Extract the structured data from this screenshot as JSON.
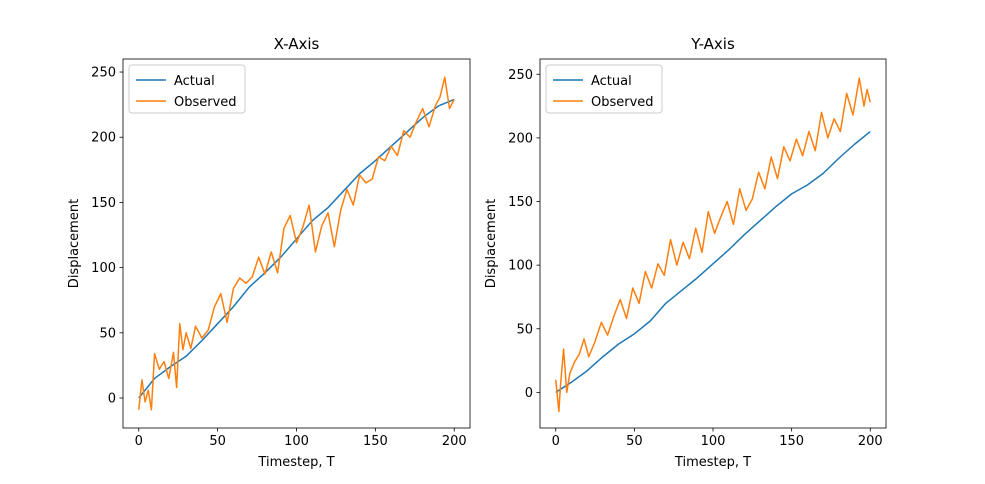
{
  "chart_data": [
    {
      "type": "line",
      "title": "X-Axis",
      "xlabel": "Timestep, T",
      "ylabel": "Displacement",
      "xlim": [
        -10,
        210
      ],
      "ylim": [
        -23,
        260
      ],
      "xticks": [
        0,
        50,
        100,
        150,
        200
      ],
      "yticks": [
        0,
        50,
        100,
        150,
        200,
        250
      ],
      "grid": false,
      "legend": "top-left",
      "series": [
        {
          "name": "Actual",
          "color": "#1f77b4",
          "x": [
            0,
            10,
            20,
            30,
            40,
            50,
            60,
            70,
            80,
            90,
            100,
            110,
            120,
            130,
            140,
            150,
            160,
            170,
            180,
            190,
            200
          ],
          "y": [
            0,
            15,
            24,
            32,
            44,
            57,
            70,
            85,
            96,
            108,
            122,
            136,
            146,
            159,
            172,
            182,
            193,
            204,
            215,
            224,
            229
          ]
        },
        {
          "name": "Observed",
          "color": "#ff7f0e",
          "x": [
            0,
            2,
            4,
            6,
            8,
            10,
            13,
            16,
            19,
            22,
            24,
            26,
            28,
            30,
            33,
            36,
            40,
            44,
            48,
            52,
            56,
            60,
            64,
            68,
            72,
            76,
            80,
            84,
            88,
            92,
            96,
            100,
            104,
            108,
            112,
            116,
            120,
            124,
            128,
            132,
            136,
            140,
            144,
            148,
            152,
            156,
            160,
            164,
            168,
            172,
            176,
            180,
            184,
            188,
            191,
            194,
            197,
            200
          ],
          "y": [
            -9,
            14,
            -3,
            6,
            -9,
            34,
            22,
            28,
            15,
            35,
            8,
            57,
            37,
            50,
            38,
            55,
            46,
            52,
            70,
            80,
            58,
            84,
            92,
            88,
            93,
            108,
            95,
            112,
            96,
            130,
            140,
            119,
            131,
            148,
            112,
            132,
            142,
            116,
            144,
            160,
            148,
            171,
            165,
            168,
            185,
            182,
            193,
            186,
            205,
            200,
            212,
            222,
            208,
            224,
            231,
            246,
            222,
            229
          ]
        }
      ]
    },
    {
      "type": "line",
      "title": "Y-Axis",
      "xlabel": "Timestep, T",
      "ylabel": "Displacement",
      "xlim": [
        -10,
        210
      ],
      "ylim": [
        -28,
        262
      ],
      "xticks": [
        0,
        50,
        100,
        150,
        200
      ],
      "yticks": [
        0,
        50,
        100,
        150,
        200,
        250
      ],
      "grid": false,
      "legend": "top-left",
      "series": [
        {
          "name": "Actual",
          "color": "#1f77b4",
          "x": [
            0,
            10,
            20,
            30,
            40,
            50,
            60,
            70,
            80,
            90,
            100,
            110,
            120,
            130,
            140,
            150,
            160,
            170,
            180,
            190,
            200
          ],
          "y": [
            0,
            8,
            17,
            28,
            38,
            46,
            56,
            70,
            80,
            90,
            101,
            112,
            124,
            135,
            146,
            156,
            163,
            172,
            184,
            195,
            205
          ]
        },
        {
          "name": "Observed",
          "color": "#ff7f0e",
          "x": [
            0,
            2,
            3,
            5,
            7,
            9,
            12,
            15,
            18,
            21,
            25,
            29,
            33,
            37,
            41,
            45,
            49,
            53,
            57,
            61,
            65,
            69,
            73,
            77,
            81,
            85,
            89,
            93,
            97,
            101,
            105,
            109,
            113,
            117,
            121,
            125,
            129,
            133,
            137,
            141,
            145,
            149,
            153,
            157,
            161,
            165,
            169,
            173,
            177,
            181,
            185,
            189,
            193,
            196,
            198,
            200
          ],
          "y": [
            10,
            -15,
            5,
            34,
            0,
            15,
            24,
            30,
            42,
            28,
            40,
            55,
            45,
            60,
            73,
            58,
            82,
            70,
            95,
            82,
            101,
            92,
            120,
            100,
            118,
            105,
            129,
            110,
            142,
            125,
            138,
            150,
            132,
            160,
            143,
            152,
            173,
            160,
            185,
            168,
            193,
            182,
            199,
            186,
            205,
            190,
            220,
            200,
            215,
            205,
            235,
            218,
            247,
            225,
            238,
            228
          ]
        }
      ]
    }
  ]
}
